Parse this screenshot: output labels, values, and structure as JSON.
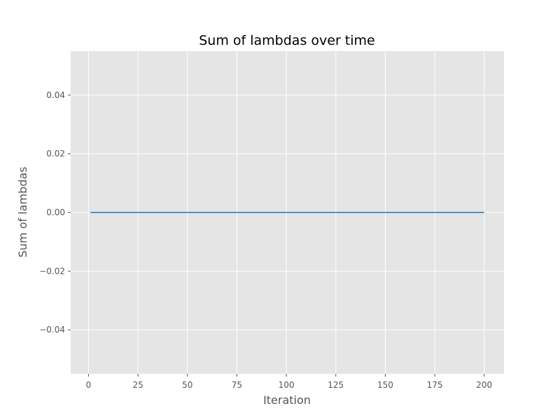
{
  "chart_data": {
    "type": "line",
    "title": "Sum of lambdas over time",
    "xlabel": "Iteration",
    "ylabel": "Sum of lambdas",
    "xlim": [
      -9,
      210
    ],
    "ylim": [
      -0.055,
      0.055
    ],
    "xticks": [
      0,
      25,
      50,
      75,
      100,
      125,
      150,
      175,
      200
    ],
    "xtick_labels": [
      "0",
      "25",
      "50",
      "75",
      "100",
      "125",
      "150",
      "175",
      "200"
    ],
    "yticks": [
      -0.04,
      -0.02,
      0.0,
      0.02,
      0.04
    ],
    "ytick_labels": [
      "−0.04",
      "−0.02",
      "0.00",
      "0.02",
      "0.04"
    ],
    "grid": true,
    "series": [
      {
        "x": [
          1,
          200
        ],
        "y": [
          0.0,
          0.0
        ],
        "color": "#1f77b4"
      }
    ],
    "colors": {
      "plot_background": "#e5e5e5",
      "grid": "#ffffff",
      "tick_text": "#555555"
    }
  }
}
